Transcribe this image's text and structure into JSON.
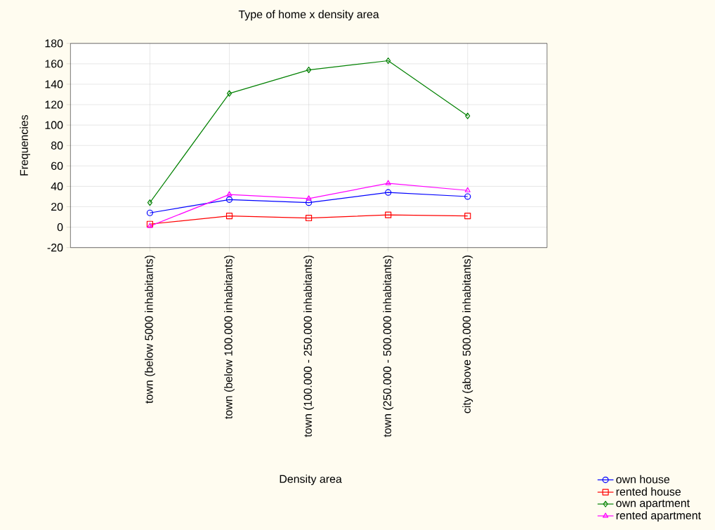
{
  "chart_data": {
    "type": "line",
    "title": "Type of home x density area",
    "xlabel": "Density area",
    "ylabel": "Frequencies",
    "categories": [
      "town (below 5000 inhabitants)",
      "town (below 100.000 inhabitants)",
      "town (100.000 - 250.000 inhabitants)",
      "town  (250.000 - 500.000 inhabitants)",
      "city (above 500.000 inhabitants)"
    ],
    "series": [
      {
        "name": "own house",
        "color": "#0000ff",
        "marker": "circle",
        "values": [
          14,
          27,
          24,
          34,
          30
        ]
      },
      {
        "name": "rented house",
        "color": "#ff0000",
        "marker": "square",
        "values": [
          3,
          11,
          9,
          12,
          11
        ]
      },
      {
        "name": "own apartment",
        "color": "#008000",
        "marker": "diamond",
        "values": [
          24,
          131,
          154,
          163,
          109
        ]
      },
      {
        "name": "rented apartment",
        "color": "#ff00ff",
        "marker": "triangle",
        "values": [
          1,
          32,
          28,
          43,
          36
        ]
      }
    ],
    "ylim": [
      -20,
      180
    ],
    "yticks": [
      -20,
      0,
      20,
      40,
      60,
      80,
      100,
      120,
      140,
      160,
      180
    ],
    "grid": true,
    "legend": "bottom right",
    "line_style": "solid"
  }
}
